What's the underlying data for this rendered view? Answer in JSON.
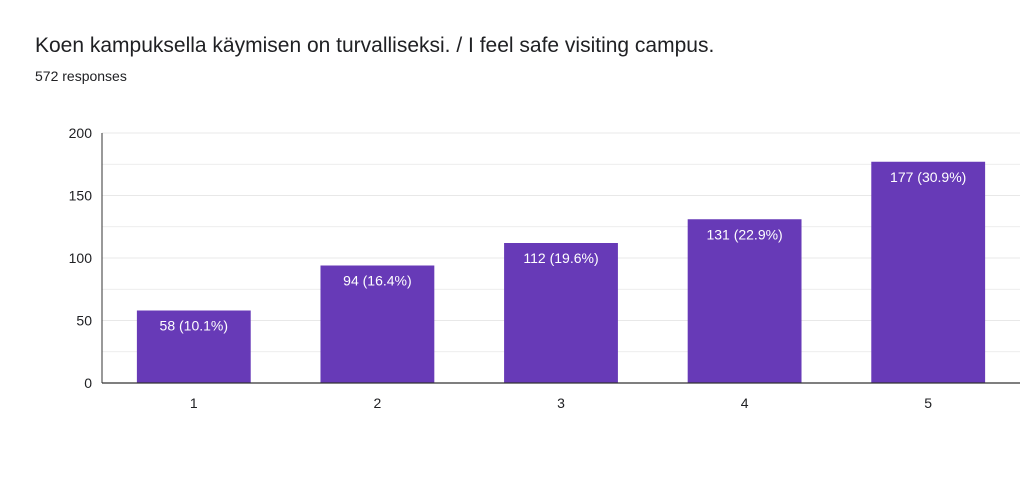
{
  "title": "Koen kampuksella käymisen on turvalliseksi. / I feel safe visiting campus.",
  "subtitle": "572 responses",
  "colors": {
    "bar": "#673ab7",
    "grid": "#e8e8e8",
    "axis": "#333333",
    "text": "#202124",
    "bar_text": "#ffffff"
  },
  "chart_data": {
    "type": "bar",
    "categories": [
      "1",
      "2",
      "3",
      "4",
      "5"
    ],
    "values": [
      58,
      94,
      112,
      131,
      177
    ],
    "data_labels": [
      "58 (10.1%)",
      "94 (16.4%)",
      "112 (19.6%)",
      "131 (22.9%)",
      "177 (30.9%)"
    ],
    "title": "Koen kampuksella käymisen on turvalliseksi. / I feel safe visiting campus.",
    "subtitle": "572 responses",
    "xlabel": "",
    "ylabel": "",
    "ylim": [
      0,
      200
    ],
    "yticks": [
      0,
      50,
      100,
      150,
      200
    ],
    "grid": true,
    "legend": "none"
  }
}
